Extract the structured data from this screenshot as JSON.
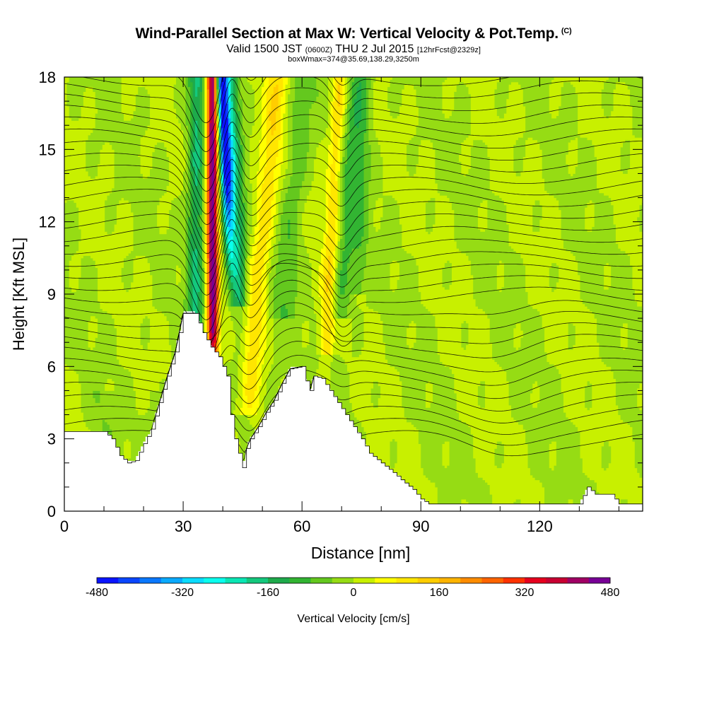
{
  "title": {
    "main": "Wind-Parallel Section at Max W: Vertical Velocity & Pot.Temp.",
    "copyright": "(C)",
    "valid_prefix": "Valid 1500 JST",
    "valid_utc": "(0600Z)",
    "valid_date": "THU 2 Jul 2015",
    "forecast": "[12hrFcst@2329z]",
    "box": "boxWmax=374@35.69,138.29,3250m"
  },
  "chart_data": {
    "type": "heatmap",
    "xlabel": "Distance [nm]",
    "ylabel": "Height [Kft MSL]",
    "xlim": [
      0,
      146
    ],
    "ylim": [
      0,
      18
    ],
    "xticks": [
      0,
      30,
      60,
      90,
      120
    ],
    "yticks": [
      0,
      3,
      6,
      9,
      12,
      15,
      18
    ],
    "terrain_kft": [
      [
        0,
        3.3
      ],
      [
        5,
        3.3
      ],
      [
        10,
        3.3
      ],
      [
        12,
        3.0
      ],
      [
        14,
        2.3
      ],
      [
        16,
        2.0
      ],
      [
        18,
        2.1
      ],
      [
        20,
        2.8
      ],
      [
        22,
        3.4
      ],
      [
        24,
        4.5
      ],
      [
        26,
        5.6
      ],
      [
        28,
        6.6
      ],
      [
        30,
        8.2
      ],
      [
        33,
        8.2
      ],
      [
        35,
        7.4
      ],
      [
        37,
        6.8
      ],
      [
        39,
        6.4
      ],
      [
        41,
        5.6
      ],
      [
        42,
        4.0
      ],
      [
        43,
        3.0
      ],
      [
        45,
        1.8
      ],
      [
        46,
        2.6
      ],
      [
        47,
        3.0
      ],
      [
        49,
        3.5
      ],
      [
        51,
        4.1
      ],
      [
        53,
        4.6
      ],
      [
        55,
        5.3
      ],
      [
        57,
        5.9
      ],
      [
        60,
        6.0
      ],
      [
        61,
        5.4
      ],
      [
        62,
        5.0
      ],
      [
        63,
        5.6
      ],
      [
        65,
        5.5
      ],
      [
        67,
        5.0
      ],
      [
        69,
        4.5
      ],
      [
        71,
        4.0
      ],
      [
        73,
        3.5
      ],
      [
        75,
        3.0
      ],
      [
        77,
        2.4
      ],
      [
        80,
        2.0
      ],
      [
        83,
        1.6
      ],
      [
        85,
        1.3
      ],
      [
        88,
        0.9
      ],
      [
        90,
        0.5
      ],
      [
        92,
        0.3
      ],
      [
        130,
        0.3
      ],
      [
        132,
        1.0
      ],
      [
        134,
        0.7
      ],
      [
        138,
        0.7
      ],
      [
        140,
        0.3
      ],
      [
        146,
        0.3
      ]
    ],
    "colorbar": {
      "label": "Vertical Velocity [cm/s]",
      "min": -480,
      "max": 480,
      "step": 40,
      "tick_values": [
        -480,
        -320,
        -160,
        0,
        160,
        320,
        480
      ],
      "tick_labels": [
        "-480",
        "-320",
        "-160",
        "0",
        "160",
        "320",
        "480"
      ],
      "colors": [
        "#0a14ff",
        "#0a46ff",
        "#0a78ff",
        "#0aaaff",
        "#0adcff",
        "#0affee",
        "#0ae6b4",
        "#14c87d",
        "#1eaa4b",
        "#32b432",
        "#64c81e",
        "#96dc14",
        "#c8f000",
        "#ffff00",
        "#ffe600",
        "#ffcd00",
        "#ffb400",
        "#ff8c00",
        "#ff6400",
        "#ff3200",
        "#e6001e",
        "#c80032",
        "#a00064",
        "#780096"
      ]
    },
    "theta_contour_count": 32
  }
}
